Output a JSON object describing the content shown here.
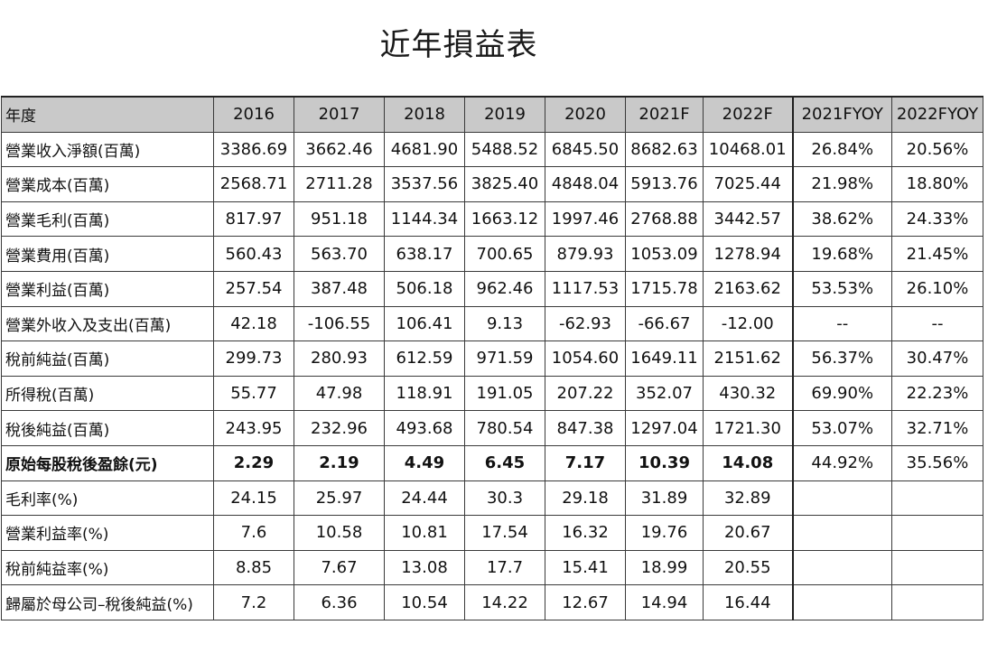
{
  "title": "近年損益表",
  "header": {
    "label": "年度",
    "years": [
      "2016",
      "2017",
      "2018",
      "2019",
      "2020",
      "2021F",
      "2022F"
    ],
    "yoy": [
      "2021FYOY",
      "2022FYOY"
    ]
  },
  "rows": [
    {
      "label": "營業收入淨額(百萬)",
      "values": [
        "3386.69",
        "3662.46",
        "4681.90",
        "5488.52",
        "6845.50",
        "8682.63",
        "10468.01"
      ],
      "yoy": [
        "26.84%",
        "20.56%"
      ]
    },
    {
      "label": "營業成本(百萬)",
      "values": [
        "2568.71",
        "2711.28",
        "3537.56",
        "3825.40",
        "4848.04",
        "5913.76",
        "7025.44"
      ],
      "yoy": [
        "21.98%",
        "18.80%"
      ]
    },
    {
      "label": "營業毛利(百萬)",
      "values": [
        "817.97",
        "951.18",
        "1144.34",
        "1663.12",
        "1997.46",
        "2768.88",
        "3442.57"
      ],
      "yoy": [
        "38.62%",
        "24.33%"
      ]
    },
    {
      "label": "營業費用(百萬)",
      "values": [
        "560.43",
        "563.70",
        "638.17",
        "700.65",
        "879.93",
        "1053.09",
        "1278.94"
      ],
      "yoy": [
        "19.68%",
        "21.45%"
      ]
    },
    {
      "label": "營業利益(百萬)",
      "values": [
        "257.54",
        "387.48",
        "506.18",
        "962.46",
        "1117.53",
        "1715.78",
        "2163.62"
      ],
      "yoy": [
        "53.53%",
        "26.10%"
      ]
    },
    {
      "label": "營業外收入及支出(百萬)",
      "values": [
        "42.18",
        "-106.55",
        "106.41",
        "9.13",
        "-62.93",
        "-66.67",
        "-12.00"
      ],
      "yoy": [
        "--",
        "--"
      ]
    },
    {
      "label": "稅前純益(百萬)",
      "values": [
        "299.73",
        "280.93",
        "612.59",
        "971.59",
        "1054.60",
        "1649.11",
        "2151.62"
      ],
      "yoy": [
        "56.37%",
        "30.47%"
      ]
    },
    {
      "label": "所得稅(百萬)",
      "values": [
        "55.77",
        "47.98",
        "118.91",
        "191.05",
        "207.22",
        "352.07",
        "430.32"
      ],
      "yoy": [
        "69.90%",
        "22.23%"
      ]
    },
    {
      "label": "稅後純益(百萬)",
      "values": [
        "243.95",
        "232.96",
        "493.68",
        "780.54",
        "847.38",
        "1297.04",
        "1721.30"
      ],
      "yoy": [
        "53.07%",
        "32.71%"
      ]
    },
    {
      "label": "原始每股稅後盈餘(元)",
      "values": [
        "2.29",
        "2.19",
        "4.49",
        "6.45",
        "7.17",
        "10.39",
        "14.08"
      ],
      "yoy": [
        "44.92%",
        "35.56%"
      ],
      "bold": true
    },
    {
      "label": "毛利率(%)",
      "values": [
        "24.15",
        "25.97",
        "24.44",
        "30.3",
        "29.18",
        "31.89",
        "32.89"
      ],
      "yoy": [
        "",
        ""
      ]
    },
    {
      "label": "營業利益率(%)",
      "values": [
        "7.6",
        "10.58",
        "10.81",
        "17.54",
        "16.32",
        "19.76",
        "20.67"
      ],
      "yoy": [
        "",
        ""
      ]
    },
    {
      "label": "稅前純益率(%)",
      "values": [
        "8.85",
        "7.67",
        "13.08",
        "17.7",
        "15.41",
        "18.99",
        "20.55"
      ],
      "yoy": [
        "",
        ""
      ]
    },
    {
      "label": "歸屬於母公司–稅後純益(%)",
      "values": [
        "7.2",
        "6.36",
        "10.54",
        "14.22",
        "12.67",
        "14.94",
        "16.44"
      ],
      "yoy": [
        "",
        ""
      ]
    }
  ]
}
